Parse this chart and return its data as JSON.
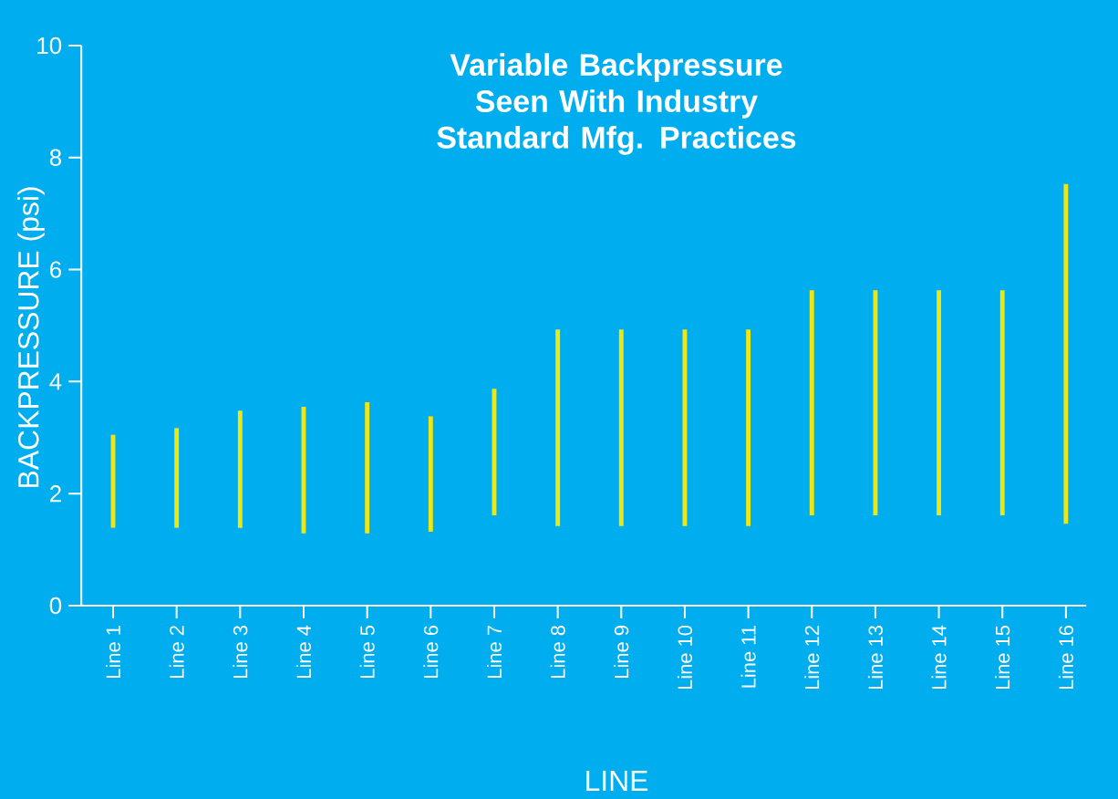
{
  "chart_data": {
    "type": "bar",
    "title": "Variable Backpressure Seen With Industry Standard Mfg. Practices",
    "xlabel": "LINE",
    "ylabel": "BACKPRESSURE (psi)",
    "categories": [
      "Line 1",
      "Line 2",
      "Line 3",
      "Line 4",
      "Line 5",
      "Line 6",
      "Line 7",
      "Line 8",
      "Line 9",
      "Line 10",
      "Line 11",
      "Line 12",
      "Line 13",
      "Line 14",
      "Line 15",
      "Line 16"
    ],
    "base": [
      1.39,
      1.39,
      1.39,
      1.29,
      1.29,
      1.32,
      1.61,
      1.42,
      1.42,
      1.42,
      1.42,
      1.61,
      1.61,
      1.61,
      1.61,
      1.46
    ],
    "values": [
      1.66,
      1.78,
      2.09,
      2.26,
      2.34,
      2.06,
      2.26,
      3.51,
      3.51,
      3.51,
      3.51,
      4.02,
      4.02,
      4.02,
      4.02,
      6.07
    ],
    "color": "#f0e612",
    "ylim": [
      0,
      10
    ],
    "yticks": [
      0,
      2,
      4,
      6,
      8,
      10
    ]
  }
}
